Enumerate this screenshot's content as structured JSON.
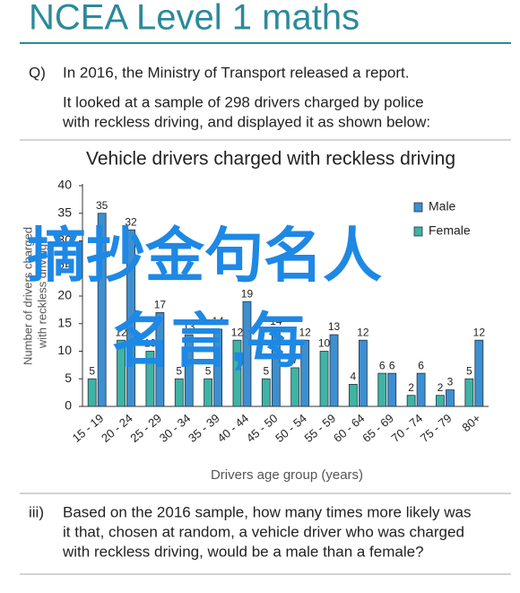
{
  "header": {
    "title": "NCEA Level 1 maths"
  },
  "question": {
    "label": "Q)",
    "lines": [
      "In 2016, the Ministry of Transport released a report.",
      "It looked at a sample of 298 drivers charged by police",
      "with reckless driving, and displayed it as shown below:"
    ]
  },
  "chart_data": {
    "type": "bar",
    "title": "Vehicle drivers charged with reckless driving",
    "xlabel": "Drivers age group (years)",
    "ylabel": [
      "Number of drivers charged",
      "with reckless driving"
    ],
    "categories": [
      "15 - 19",
      "20 - 24",
      "25 - 29",
      "30 - 34",
      "35 - 39",
      "40 - 44",
      "45 - 50",
      "50 - 54",
      "55 - 59",
      "60 - 64",
      "65 - 69",
      "70 - 74",
      "75 - 79",
      "80+"
    ],
    "series": [
      {
        "name": "Male",
        "color": "#3d8fd0",
        "values": [
          35,
          32,
          17,
          13,
          14,
          19,
          14,
          12,
          13,
          12,
          6,
          6,
          3,
          12
        ]
      },
      {
        "name": "Female",
        "color": "#3fb3a4",
        "values": [
          5,
          12,
          10,
          5,
          5,
          12,
          5,
          7,
          10,
          4,
          6,
          2,
          2,
          5
        ]
      }
    ],
    "ylim": [
      0,
      40
    ],
    "yticks": [
      0,
      5,
      10,
      15,
      20,
      25,
      30,
      35,
      40
    ],
    "legend": "upper-right"
  },
  "part": {
    "label": "iii)",
    "lines": [
      "Based on the 2016 sample, how many times more likely was",
      "it that, chosen at random, a vehicle driver who was charged",
      "with reckless driving, would be a male than a female?"
    ]
  },
  "watermark": [
    "摘抄金句名人",
    "名言,每"
  ]
}
